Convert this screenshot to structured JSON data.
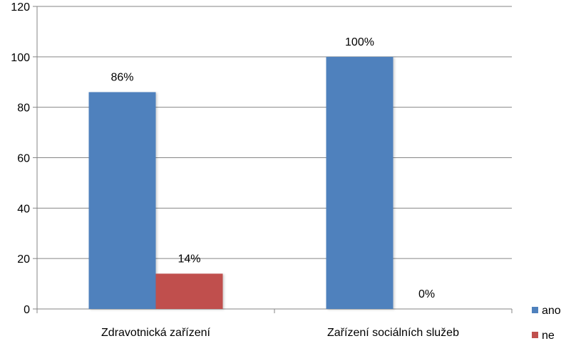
{
  "chart_data": {
    "type": "bar",
    "categories": [
      "Zdravotnická zařízení",
      "Zařízení sociálních služeb"
    ],
    "series": [
      {
        "name": "ano",
        "values": [
          86,
          100
        ],
        "labels": [
          "86%",
          "100%"
        ],
        "color": "#4f81bd"
      },
      {
        "name": "ne",
        "values": [
          14,
          0
        ],
        "labels": [
          "14%",
          "0%"
        ],
        "color": "#c0504d"
      }
    ],
    "ylim": [
      0,
      120
    ],
    "yticks": [
      "0",
      "20",
      "40",
      "60",
      "80",
      "100",
      "120"
    ],
    "grid": true,
    "legend_position": "right"
  }
}
